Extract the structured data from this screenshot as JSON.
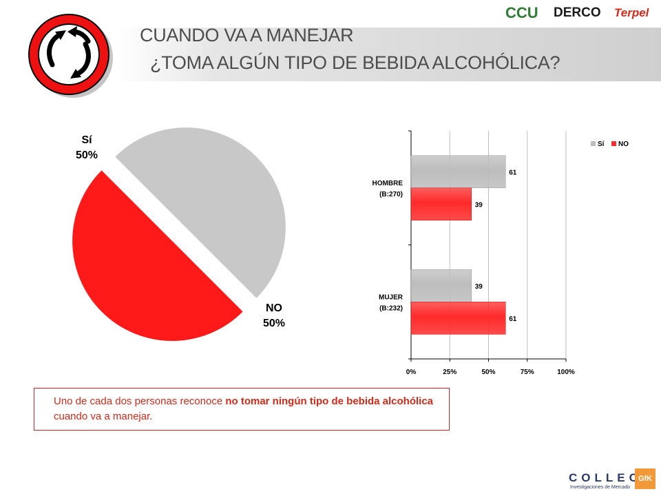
{
  "header": {
    "title_line1": "CUANDO VA A MANEJAR",
    "title_line2": "¿TOMA ALGÚN TIPO DE BEBIDA ALCOHÓLICA?"
  },
  "sponsors": {
    "ccu": "CCU",
    "derco": "DERCO",
    "terpel": "Terpel"
  },
  "footer": {
    "logo": "COLLECT",
    "logo_sub": "Investigaciones de Mercado",
    "gfk": "GfK"
  },
  "note": {
    "text_pre": "Uno de cada dos personas reconoce ",
    "text_bold": "no tomar ningún tipo de bebida alcohólica",
    "text_post": " cuando va a manejar."
  },
  "colors": {
    "si": "#c8c8c8",
    "no": "#ff1a1a",
    "accent": "#d42a1a"
  },
  "chart_data": [
    {
      "type": "pie",
      "slices": [
        {
          "label": "Sí",
          "value": 50,
          "value_label": "50%",
          "color": "#c8c8c8"
        },
        {
          "label": "NO",
          "value": 50,
          "value_label": "50%",
          "color": "#ff1a1a"
        }
      ]
    },
    {
      "type": "bar",
      "orientation": "horizontal",
      "categories": [
        "HOMBRE",
        "MUJER"
      ],
      "category_bases": [
        "(B:270)",
        "(B:232)"
      ],
      "series": [
        {
          "name": "Sí",
          "values": [
            61,
            39
          ],
          "color": "#bdbdbd"
        },
        {
          "name": "NO",
          "values": [
            39,
            61
          ],
          "color": "#ff2a2a"
        }
      ],
      "xlim": [
        0,
        100
      ],
      "xticks": [
        "0%",
        "25%",
        "50%",
        "75%",
        "100%"
      ],
      "grid": true,
      "legend": "top-right"
    }
  ]
}
